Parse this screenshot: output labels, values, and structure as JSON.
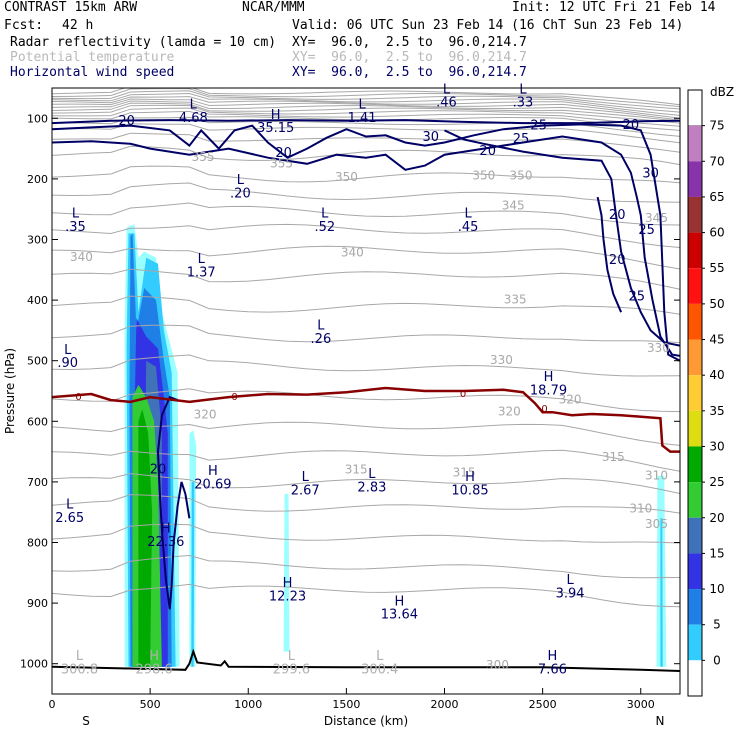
{
  "header": {
    "model": "CONTRAST 15km ARW",
    "center": "NCAR/MMM",
    "init": "Init: 12 UTC Fri 21 Feb 14",
    "fcst_label": "Fcst:",
    "fcst_value": "42 h",
    "valid": "Valid: 06 UTC Sun 23 Feb 14 (16 ChT Sun 23 Feb 14)",
    "fields": [
      {
        "name": "Radar reflectivity (lamda = 10 cm)",
        "xy": "XY=  96.0,  2.5 to  96.0,214.7",
        "color": "#000000"
      },
      {
        "name": "Potential temperature",
        "xy": "XY=  96.0,  2.5 to  96.0,214.7",
        "color": "#b9b9b9"
      },
      {
        "name": "Horizontal wind speed",
        "xy": "XY=  96.0,  2.5 to  96.0,214.7",
        "color": "#000066"
      }
    ]
  },
  "chart_data": {
    "type": "cross-section",
    "xlabel": "Distance (km)",
    "ylabel": "Pressure (hPa)",
    "xlim": [
      0,
      3200
    ],
    "ylim": [
      1050,
      50
    ],
    "x_ticks": [
      0,
      500,
      1000,
      1500,
      2000,
      2500,
      3000
    ],
    "y_ticks": [
      100,
      200,
      300,
      400,
      500,
      600,
      700,
      800,
      900,
      1000
    ],
    "end_labels": {
      "left": "S",
      "right": "N"
    },
    "colorbar": {
      "unit": "dBZ",
      "levels": [
        0,
        5,
        10,
        15,
        20,
        25,
        30,
        35,
        40,
        45,
        50,
        55,
        60,
        65,
        70,
        75
      ],
      "colors": [
        "#99ffff",
        "#33ccff",
        "#1f7fe6",
        "#3333e6",
        "#3f72b8",
        "#33cc33",
        "#00aa00",
        "#dddd11",
        "#ffcc33",
        "#ff9933",
        "#ff5500",
        "#ff1111",
        "#cc0000",
        "#993333",
        "#8833aa",
        "#c080c0"
      ]
    },
    "wind_speed_labels": [
      {
        "x": 380,
        "p": 105,
        "text": "20"
      },
      {
        "x": 1180,
        "p": 158,
        "text": "20"
      },
      {
        "x": 1930,
        "p": 132,
        "text": "30"
      },
      {
        "x": 2480,
        "p": 113,
        "text": "25"
      },
      {
        "x": 2950,
        "p": 112,
        "text": "20"
      },
      {
        "x": 2220,
        "p": 155,
        "text": "20"
      },
      {
        "x": 2390,
        "p": 135,
        "text": "25"
      },
      {
        "x": 3050,
        "p": 192,
        "text": "30"
      },
      {
        "x": 2880,
        "p": 260,
        "text": "20"
      },
      {
        "x": 3030,
        "p": 285,
        "text": "25"
      },
      {
        "x": 2880,
        "p": 335,
        "text": "20"
      },
      {
        "x": 2980,
        "p": 395,
        "text": "25"
      },
      {
        "x": 540,
        "p": 680,
        "text": "20"
      }
    ],
    "theta_labels": [
      {
        "x": 770,
        "p": 165,
        "text": "355"
      },
      {
        "x": 1170,
        "p": 175,
        "text": "355"
      },
      {
        "x": 1500,
        "p": 198,
        "text": "350"
      },
      {
        "x": 2200,
        "p": 195,
        "text": "350"
      },
      {
        "x": 2390,
        "p": 195,
        "text": "350"
      },
      {
        "x": 2350,
        "p": 245,
        "text": "345"
      },
      {
        "x": 3080,
        "p": 265,
        "text": "345"
      },
      {
        "x": 150,
        "p": 330,
        "text": "340"
      },
      {
        "x": 1530,
        "p": 322,
        "text": "340"
      },
      {
        "x": 2360,
        "p": 400,
        "text": "335"
      },
      {
        "x": 2290,
        "p": 500,
        "text": "330"
      },
      {
        "x": 3090,
        "p": 480,
        "text": "330"
      },
      {
        "x": 780,
        "p": 590,
        "text": "320"
      },
      {
        "x": 2330,
        "p": 585,
        "text": "320"
      },
      {
        "x": 2640,
        "p": 565,
        "text": "320"
      },
      {
        "x": 2860,
        "p": 660,
        "text": "315"
      },
      {
        "x": 1550,
        "p": 680,
        "text": "315"
      },
      {
        "x": 2100,
        "p": 685,
        "text": "315"
      },
      {
        "x": 3000,
        "p": 745,
        "text": "310"
      },
      {
        "x": 3080,
        "p": 690,
        "text": "310"
      },
      {
        "x": 3080,
        "p": 770,
        "text": "305"
      },
      {
        "x": 2270,
        "p": 1003,
        "text": "300"
      }
    ],
    "zero_isotherm_labels": [
      {
        "x": 135,
        "p": 560,
        "text": "0"
      },
      {
        "x": 930,
        "p": 560,
        "text": "0"
      },
      {
        "x": 2095,
        "p": 555,
        "text": "0"
      },
      {
        "x": 2510,
        "p": 580,
        "text": "0"
      }
    ],
    "extrema": [
      {
        "x": 720,
        "p": 100,
        "letter": "L",
        "value": "4.68",
        "field": "wind"
      },
      {
        "x": 1140,
        "p": 117,
        "letter": "H",
        "value": "35.15",
        "field": "wind"
      },
      {
        "x": 1580,
        "p": 100,
        "letter": "L",
        "value": "1.41",
        "field": "wind"
      },
      {
        "x": 2010,
        "p": 75,
        "letter": "L",
        "value": ".46",
        "field": "wind"
      },
      {
        "x": 2400,
        "p": 75,
        "letter": "L",
        "value": ".33",
        "field": "wind"
      },
      {
        "x": 960,
        "p": 225,
        "letter": "L",
        "value": ".20",
        "field": "wind"
      },
      {
        "x": 120,
        "p": 280,
        "letter": "L",
        "value": ".35",
        "field": "wind"
      },
      {
        "x": 1390,
        "p": 280,
        "letter": "L",
        "value": ".52",
        "field": "wind"
      },
      {
        "x": 2120,
        "p": 280,
        "letter": "L",
        "value": ".45",
        "field": "wind"
      },
      {
        "x": 760,
        "p": 355,
        "letter": "L",
        "value": "1.37",
        "field": "wind"
      },
      {
        "x": 1370,
        "p": 465,
        "letter": "L",
        "value": ".26",
        "field": "wind"
      },
      {
        "x": 80,
        "p": 505,
        "letter": "L",
        "value": ".90",
        "field": "wind"
      },
      {
        "x": 2530,
        "p": 550,
        "letter": "H",
        "value": "18.79",
        "field": "wind"
      },
      {
        "x": 820,
        "p": 705,
        "letter": "H",
        "value": "20.69",
        "field": "wind"
      },
      {
        "x": 1290,
        "p": 715,
        "letter": "L",
        "value": "2.67",
        "field": "wind"
      },
      {
        "x": 1630,
        "p": 710,
        "letter": "L",
        "value": "2.83",
        "field": "wind"
      },
      {
        "x": 2130,
        "p": 715,
        "letter": "H",
        "value": "10.85",
        "field": "wind"
      },
      {
        "x": 90,
        "p": 760,
        "letter": "L",
        "value": "2.65",
        "field": "wind"
      },
      {
        "x": 580,
        "p": 800,
        "letter": "H",
        "value": "22.36",
        "field": "wind"
      },
      {
        "x": 1200,
        "p": 890,
        "letter": "H",
        "value": "12.23",
        "field": "wind"
      },
      {
        "x": 1770,
        "p": 920,
        "letter": "H",
        "value": "13.64",
        "field": "wind"
      },
      {
        "x": 2640,
        "p": 885,
        "letter": "L",
        "value": "3.94",
        "field": "wind"
      },
      {
        "x": 2550,
        "p": 1010,
        "letter": "H",
        "value": "7.66",
        "field": "wind"
      },
      {
        "x": 140,
        "p": 1010,
        "letter": "L",
        "value": "300.8",
        "field": "theta"
      },
      {
        "x": 520,
        "p": 1010,
        "letter": "H",
        "value": "298.6",
        "field": "theta"
      },
      {
        "x": 1220,
        "p": 1010,
        "letter": "L",
        "value": "299.6",
        "field": "theta"
      },
      {
        "x": 1670,
        "p": 1010,
        "letter": "L",
        "value": "300.4",
        "field": "theta"
      }
    ],
    "terrain": [
      [
        0,
        1005
      ],
      [
        400,
        1008
      ],
      [
        680,
        1010
      ],
      [
        700,
        1000
      ],
      [
        720,
        980
      ],
      [
        740,
        998
      ],
      [
        860,
        1003
      ],
      [
        880,
        996
      ],
      [
        900,
        1005
      ],
      [
        1500,
        1006
      ],
      [
        2500,
        1006
      ],
      [
        3000,
        1010
      ],
      [
        3200,
        1012
      ]
    ]
  }
}
